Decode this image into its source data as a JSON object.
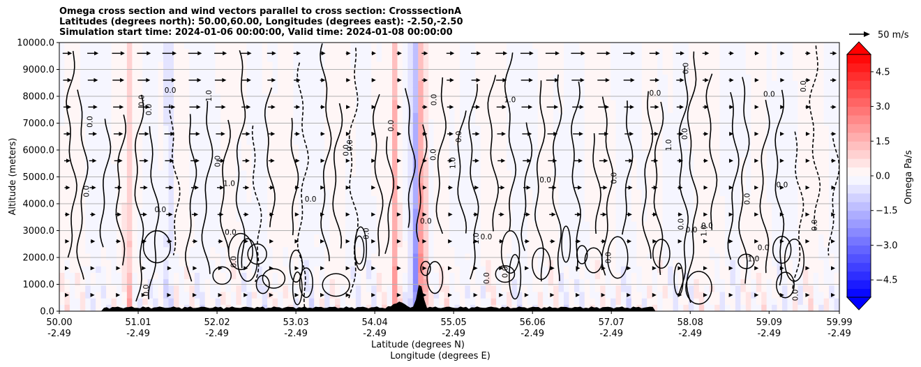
{
  "chart_data": {
    "type": "heatmap",
    "title_lines": [
      "Omega cross section and wind vectors parallel to cross section: CrosssectionA",
      "Latitudes (degrees north): 50.00,60.00, Longitudes (degrees east): -2.50,-2.50",
      "Simulation start time: 2024-01-06 00:00:00, Valid time: 2024-01-08 00:00:00"
    ],
    "ylabel": "Altitude (meters)",
    "xlabel_lines": [
      "Latitude (degrees N)",
      "Longitude (degrees E)"
    ],
    "ylim": [
      0,
      10000
    ],
    "yticks": [
      "0.0",
      "1000.0",
      "2000.0",
      "3000.0",
      "4000.0",
      "5000.0",
      "6000.0",
      "7000.0",
      "8000.0",
      "9000.0",
      "10000.0"
    ],
    "xlim": [
      50.0,
      59.99
    ],
    "xticks": [
      {
        "lat": "50.00",
        "lon": "-2.49"
      },
      {
        "lat": "51.01",
        "lon": "-2.49"
      },
      {
        "lat": "52.02",
        "lon": "-2.49"
      },
      {
        "lat": "53.03",
        "lon": "-2.49"
      },
      {
        "lat": "54.04",
        "lon": "-2.49"
      },
      {
        "lat": "55.05",
        "lon": "-2.49"
      },
      {
        "lat": "56.06",
        "lon": "-2.49"
      },
      {
        "lat": "57.07",
        "lon": "-2.49"
      },
      {
        "lat": "58.08",
        "lon": "-2.49"
      },
      {
        "lat": "59.09",
        "lon": "-2.49"
      },
      {
        "lat": "59.99",
        "lon": "-2.49"
      }
    ],
    "grid": "horizontal",
    "colorbar": {
      "label": "Omega Pa/s",
      "range": [
        -5.25,
        5.25
      ],
      "step": 0.375,
      "ticks": [
        "−4.5",
        "−3.0",
        "−1.5",
        "0.0",
        "1.5",
        "3.0",
        "4.5"
      ],
      "extend": "both",
      "colormap": "bwr"
    },
    "wind_key": {
      "label": "50 m/s"
    },
    "contour_label_values": [
      "0.0",
      "1.0",
      "-1.0",
      "1.6"
    ],
    "strong_features": [
      {
        "lat": 54.3,
        "omega": 2.0
      },
      {
        "lat": 54.55,
        "omega": -2.5
      },
      {
        "lat": 54.65,
        "omega": 3.5
      },
      {
        "lat": 51.4,
        "omega": -1.2
      },
      {
        "lat": 50.9,
        "omega": 1.2
      }
    ],
    "terrain": "black filled terrain profile, peaks near 54.6 N"
  }
}
